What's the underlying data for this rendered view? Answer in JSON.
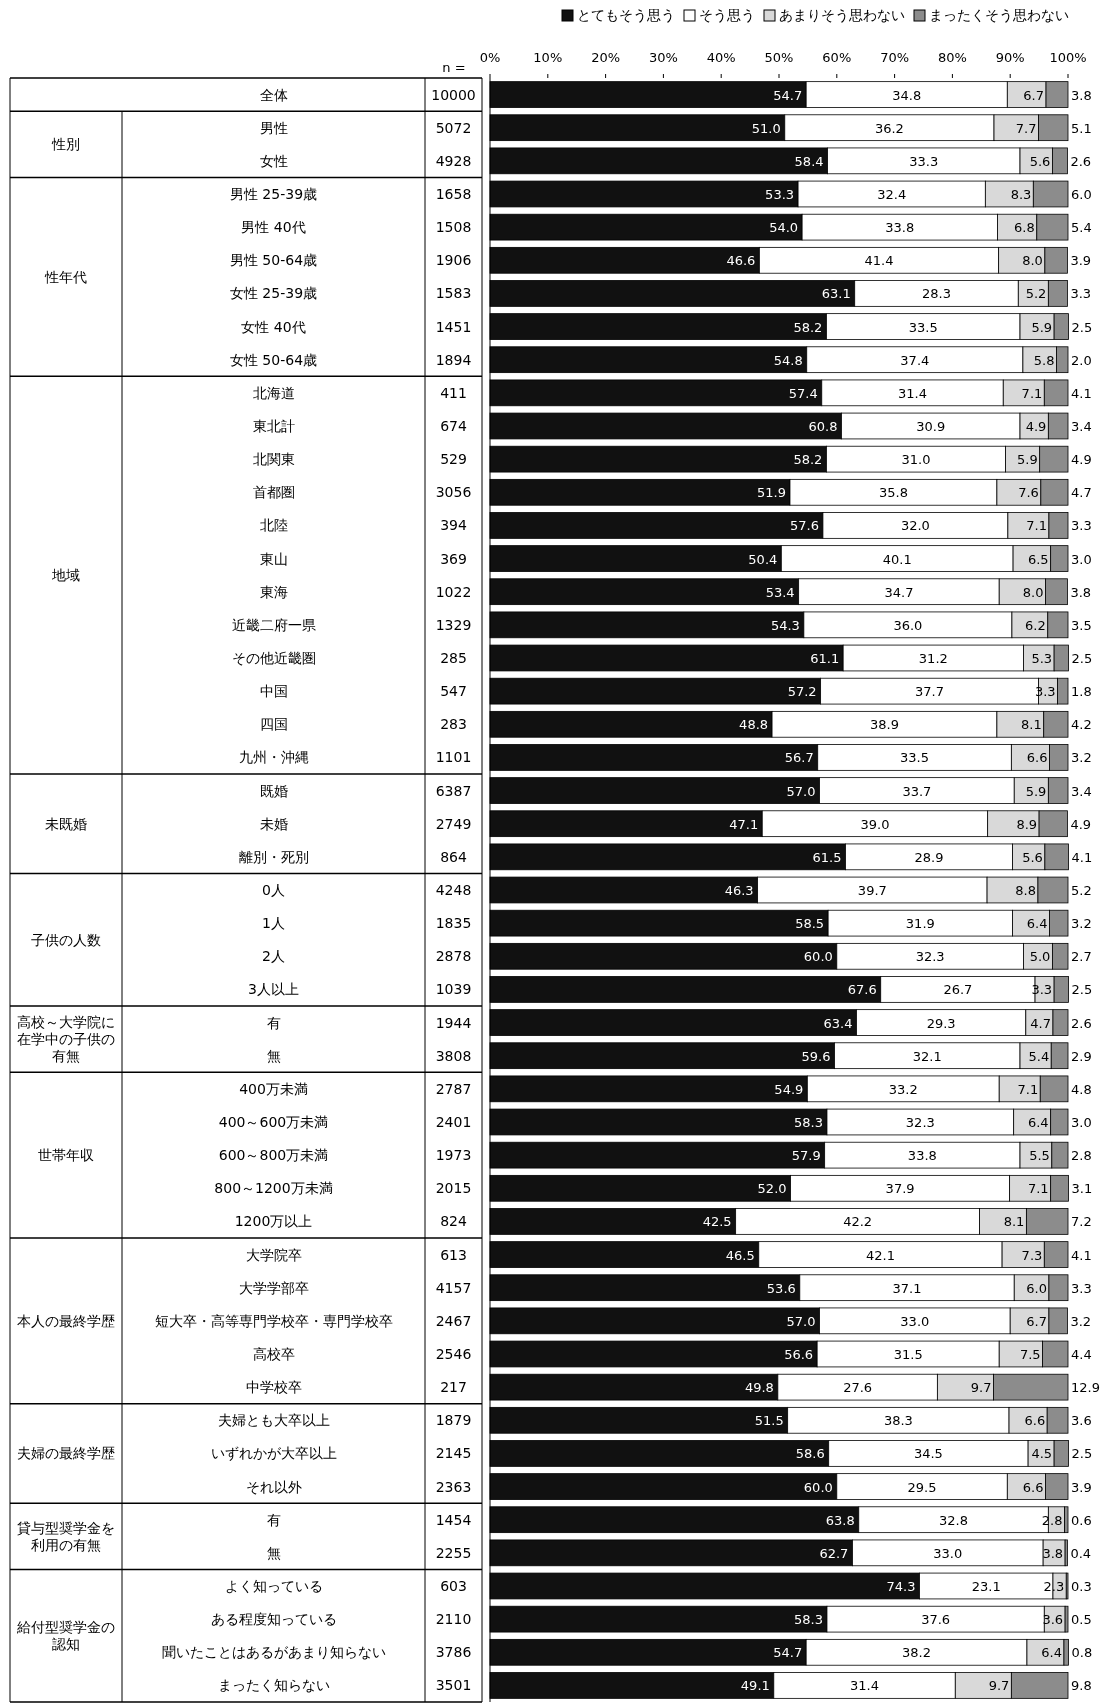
{
  "chart_data": {
    "type": "bar",
    "orientation": "horizontal",
    "stacked": true,
    "legend": "top right",
    "xlim": [
      0,
      100
    ],
    "xticks": [
      {
        "value": 0,
        "label": "0%"
      },
      {
        "value": 10,
        "label": "10%"
      },
      {
        "value": 20,
        "label": "20%"
      },
      {
        "value": 30,
        "label": "30%"
      },
      {
        "value": 40,
        "label": "40%"
      },
      {
        "value": 50,
        "label": "50%"
      },
      {
        "value": 60,
        "label": "60%"
      },
      {
        "value": 70,
        "label": "70%"
      },
      {
        "value": 80,
        "label": "80%"
      },
      {
        "value": 90,
        "label": "90%"
      },
      {
        "value": 100,
        "label": "100%"
      }
    ],
    "categories": [
      "全体",
      "男性",
      "女性",
      "男性 25-39歳",
      "男性 40代",
      "男性 50-64歳",
      "女性 25-39歳",
      "女性 40代",
      "女性 50-64歳",
      "北海道",
      "東北計",
      "北関東",
      "首都圏",
      "北陸",
      "東山",
      "東海",
      "近畿二府一県",
      "その他近畿圏",
      "中国",
      "四国",
      "九州・沖縄",
      "既婚",
      "未婚",
      "離別・死別",
      "0人",
      "1人",
      "2人",
      "3人以上",
      "有",
      "無",
      "400万未満",
      "400～600万未満",
      "600～800万未満",
      "800～1200万未満",
      "1200万以上",
      "大学院卒",
      "大学学部卒",
      "短大卒・高等専門学校卒・専門学校卒",
      "高校卒",
      "中学校卒",
      "夫婦とも大卒以上",
      "いずれかが大卒以上",
      "それ以外",
      "有",
      "無",
      "よく知っている",
      "ある程度知っている",
      "聞いたことはあるがあまり知らない",
      "まったく知らない"
    ],
    "series": [
      {
        "name": "とてもそう思う",
        "color": "#111111",
        "values": [
          54.7,
          51.0,
          58.4,
          53.3,
          54.0,
          46.6,
          63.1,
          58.2,
          54.8,
          57.4,
          60.8,
          58.2,
          51.9,
          57.6,
          50.4,
          53.4,
          54.3,
          61.1,
          57.2,
          48.8,
          56.7,
          57.0,
          47.1,
          61.5,
          46.3,
          58.5,
          60.0,
          67.6,
          63.4,
          59.6,
          54.9,
          58.3,
          57.9,
          52.0,
          42.5,
          46.5,
          53.6,
          57.0,
          56.6,
          49.8,
          51.5,
          58.6,
          60.0,
          63.8,
          62.7,
          74.3,
          58.3,
          54.7,
          49.1
        ],
        "value_labels": [
          "54.7",
          "51.0",
          "58.4",
          "53.3",
          "54.0",
          "46.6",
          "63.1",
          "58.2",
          "54.8",
          "57.4",
          "60.8",
          "58.2",
          "51.9",
          "57.6",
          "50.4",
          "53.4",
          "54.3",
          "61.1",
          "57.2",
          "48.8",
          "56.7",
          "57.0",
          "47.1",
          "61.5",
          "46.3",
          "58.5",
          "60.0",
          "67.6",
          "63.4",
          "59.6",
          "54.9",
          "58.3",
          "57.9",
          "52.0",
          "42.5",
          "46.5",
          "53.6",
          "57.0",
          "56.6",
          "49.8",
          "51.5",
          "58.6",
          "60.0",
          "63.8",
          "62.7",
          "74.3",
          "58.3",
          "54.7",
          "49.1"
        ]
      },
      {
        "name": "そう思う",
        "color": "#ffffff",
        "values": [
          34.8,
          36.2,
          33.3,
          32.4,
          33.8,
          41.4,
          28.3,
          33.5,
          37.4,
          31.4,
          30.9,
          31.0,
          35.8,
          32.0,
          40.1,
          34.7,
          36.0,
          31.2,
          37.7,
          38.9,
          33.5,
          33.7,
          39.0,
          28.9,
          39.7,
          31.9,
          32.3,
          26.7,
          29.3,
          32.1,
          33.2,
          32.3,
          33.8,
          37.9,
          42.2,
          42.1,
          37.1,
          33.0,
          31.5,
          27.6,
          38.3,
          34.5,
          29.5,
          32.8,
          33.0,
          23.1,
          37.6,
          38.2,
          31.4
        ],
        "value_labels": [
          "34.8",
          "36.2",
          "33.3",
          "32.4",
          "33.8",
          "41.4",
          "28.3",
          "33.5",
          "37.4",
          "31.4",
          "30.9",
          "31.0",
          "35.8",
          "32.0",
          "40.1",
          "34.7",
          "36.0",
          "31.2",
          "37.7",
          "38.9",
          "33.5",
          "33.7",
          "39.0",
          "28.9",
          "39.7",
          "31.9",
          "32.3",
          "26.7",
          "29.3",
          "32.1",
          "33.2",
          "32.3",
          "33.8",
          "37.9",
          "42.2",
          "42.1",
          "37.1",
          "33.0",
          "31.5",
          "27.6",
          "38.3",
          "34.5",
          "29.5",
          "32.8",
          "33.0",
          "23.1",
          "37.6",
          "38.2",
          "31.4"
        ]
      },
      {
        "name": "あまりそう思わない",
        "color": "#d9d9d9",
        "values": [
          6.7,
          7.7,
          5.6,
          8.3,
          6.8,
          8.0,
          5.2,
          5.9,
          5.8,
          7.1,
          4.9,
          5.9,
          7.6,
          7.1,
          6.5,
          8.0,
          6.2,
          5.3,
          3.3,
          8.1,
          6.6,
          5.9,
          8.9,
          5.6,
          8.8,
          6.4,
          5.0,
          3.3,
          4.7,
          5.4,
          7.1,
          6.4,
          5.5,
          7.1,
          8.1,
          7.3,
          6.0,
          6.7,
          7.5,
          9.7,
          6.6,
          4.5,
          6.6,
          2.8,
          3.8,
          2.3,
          3.6,
          6.4,
          9.7
        ],
        "value_labels": [
          "6.7",
          "7.7",
          "5.6",
          "8.3",
          "6.8",
          "8.0",
          "5.2",
          "5.9",
          "5.8",
          "7.1",
          "4.9",
          "5.9",
          "7.6",
          "7.1",
          "6.5",
          "8.0",
          "6.2",
          "5.3",
          "3.3",
          "8.1",
          "6.6",
          "5.9",
          "8.9",
          "5.6",
          "8.8",
          "6.4",
          "5.0",
          "3.3",
          "4.7",
          "5.4",
          "7.1",
          "6.4",
          "5.5",
          "7.1",
          "8.1",
          "7.3",
          "6.0",
          "6.7",
          "7.5",
          "9.7",
          "6.6",
          "4.5",
          "6.6",
          "2.8",
          "3.8",
          "2.3",
          "3.6",
          "6.4",
          "9.7"
        ]
      },
      {
        "name": "まったくそう思わない",
        "color": "#8c8c8c",
        "values": [
          3.8,
          5.1,
          2.6,
          6.0,
          5.4,
          3.9,
          3.3,
          2.5,
          2.0,
          4.1,
          3.4,
          4.9,
          4.7,
          3.3,
          3.0,
          3.8,
          3.5,
          2.5,
          1.8,
          4.2,
          3.2,
          3.4,
          4.9,
          4.1,
          5.2,
          3.2,
          2.7,
          2.5,
          2.6,
          2.9,
          4.8,
          3.0,
          2.8,
          3.1,
          7.2,
          4.1,
          3.3,
          3.2,
          4.4,
          12.9,
          3.6,
          2.5,
          3.9,
          0.6,
          0.4,
          0.3,
          0.5,
          0.8,
          9.8
        ],
        "value_labels": [
          "3.8",
          "5.1",
          "2.6",
          "6.0",
          "5.4",
          "3.9",
          "3.3",
          "2.5",
          "2.0",
          "4.1",
          "3.4",
          "4.9",
          "4.7",
          "3.3",
          "3.0",
          "3.8",
          "3.5",
          "2.5",
          "1.8",
          "4.2",
          "3.2",
          "3.4",
          "4.9",
          "4.1",
          "5.2",
          "3.2",
          "2.7",
          "2.5",
          "2.6",
          "2.9",
          "4.8",
          "3.0",
          "2.8",
          "3.1",
          "7.2",
          "4.1",
          "3.3",
          "3.2",
          "4.4",
          "12.9",
          "3.6",
          "2.5",
          "3.9",
          "0.6",
          "0.4",
          "0.3",
          "0.5",
          "0.8",
          "9.8"
        ]
      }
    ],
    "annotations": [
      "n =",
      "10000",
      "性別",
      "5072",
      "4928",
      "性年代",
      "1658",
      "1508",
      "1906",
      "1583",
      "1451",
      "1894",
      "地域",
      "411",
      "674",
      "529",
      "3056",
      "394",
      "369",
      "1022",
      "1329",
      "285",
      "547",
      "283",
      "1101",
      "未既婚",
      "6387",
      "2749",
      "864",
      "子供の人数",
      "4248",
      "1835",
      "2878",
      "1039",
      "高校～大学院に在学中の子供の有無",
      "1944",
      "3808",
      "世帯年収",
      "2787",
      "2401",
      "1973",
      "2015",
      "824",
      "本人の最終学歴",
      "613",
      "4157",
      "2467",
      "2546",
      "217",
      "夫婦の最終学歴",
      "1879",
      "2145",
      "2363",
      "貸与型奨学金を利用の有無",
      "1454",
      "2255",
      "給付型奨学金の認知",
      "603",
      "2110",
      "3786",
      "3501"
    ]
  }
}
